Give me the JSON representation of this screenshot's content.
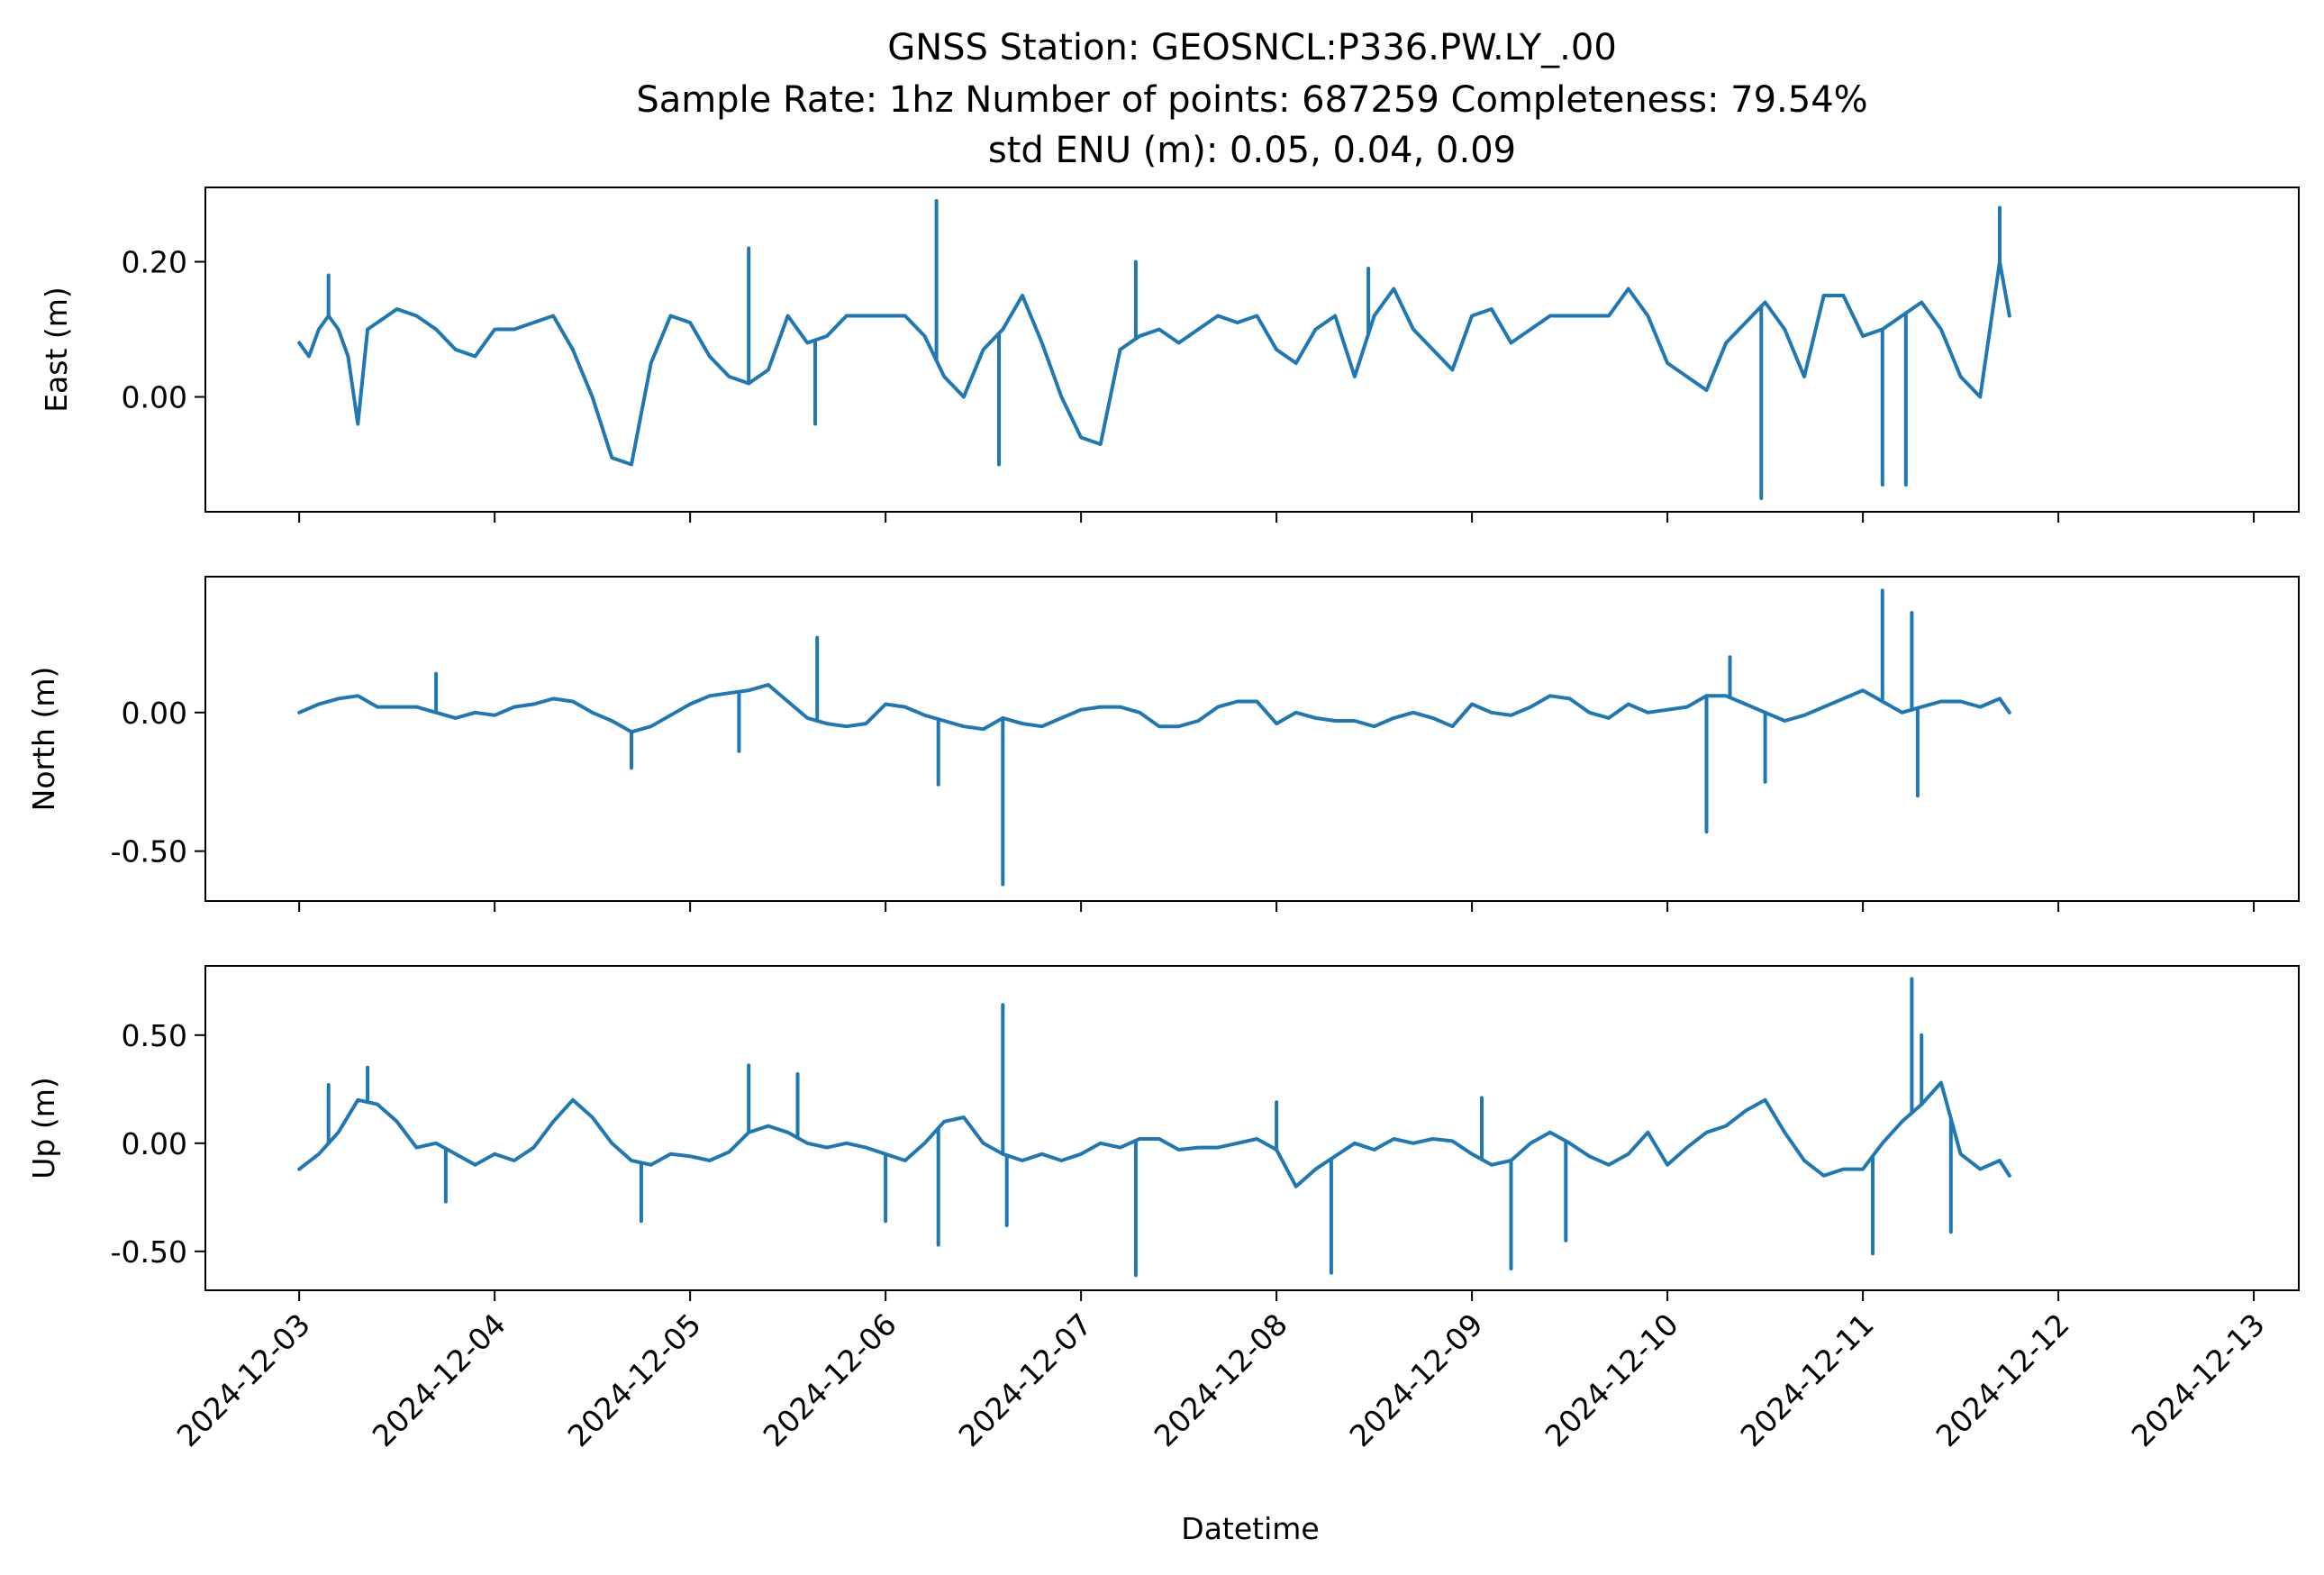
{
  "chart_data": {
    "type": "line",
    "title_lines": [
      "GNSS Station: GEOSNCL:P336.PW.LY_.00",
      "Sample Rate: 1hz   Number of points: 687259    Completeness:  79.54%",
      "std ENU (m):  0.05, 0.04, 0.09"
    ],
    "xlabel": "Datetime",
    "x_ticks": [
      "2024-12-03",
      "2024-12-04",
      "2024-12-05",
      "2024-12-06",
      "2024-12-07",
      "2024-12-08",
      "2024-12-09",
      "2024-12-10",
      "2024-12-11",
      "2024-12-12",
      "2024-12-13"
    ],
    "xlim_days": [
      -0.48,
      10.23
    ],
    "x_start_date": "2024-12-03",
    "color": "#1f77b4",
    "panels": [
      {
        "name": "east",
        "ylabel": "East (m)",
        "ylim": [
          -0.17,
          0.31
        ],
        "yticks": [
          0.0,
          0.2
        ],
        "ytick_labels": [
          "0.00",
          "0.20"
        ],
        "x": [
          0.0,
          0.05,
          0.1,
          0.15,
          0.2,
          0.25,
          0.3,
          0.35,
          0.4,
          0.5,
          0.6,
          0.7,
          0.8,
          0.9,
          1.0,
          1.1,
          1.2,
          1.3,
          1.4,
          1.5,
          1.6,
          1.7,
          1.8,
          1.9,
          2.0,
          2.1,
          2.2,
          2.3,
          2.4,
          2.5,
          2.6,
          2.7,
          2.8,
          2.9,
          3.0,
          3.1,
          3.2,
          3.3,
          3.4,
          3.5,
          3.6,
          3.7,
          3.8,
          3.9,
          4.0,
          4.1,
          4.2,
          4.3,
          4.4,
          4.5,
          4.6,
          4.7,
          4.8,
          4.9,
          5.0,
          5.1,
          5.2,
          5.3,
          5.4,
          5.5,
          5.6,
          5.7,
          5.8,
          5.9,
          6.0,
          6.1,
          6.2,
          6.3,
          6.4,
          6.5,
          6.6,
          6.7,
          6.8,
          6.9,
          7.0,
          7.1,
          7.2,
          7.3,
          7.4,
          7.5,
          7.6,
          7.7,
          7.8,
          7.9,
          8.0,
          8.1,
          8.2,
          8.3,
          8.4,
          8.5,
          8.6,
          8.7,
          8.75
        ],
        "y": [
          0.08,
          0.06,
          0.1,
          0.12,
          0.1,
          0.06,
          -0.04,
          0.1,
          0.11,
          0.13,
          0.12,
          0.1,
          0.07,
          0.06,
          0.1,
          0.1,
          0.11,
          0.12,
          0.07,
          0.0,
          -0.09,
          -0.1,
          0.05,
          0.12,
          0.11,
          0.06,
          0.03,
          0.02,
          0.04,
          0.12,
          0.08,
          0.09,
          0.12,
          0.12,
          0.12,
          0.12,
          0.09,
          0.03,
          0.0,
          0.07,
          0.1,
          0.15,
          0.08,
          0.0,
          -0.06,
          -0.07,
          0.07,
          0.09,
          0.1,
          0.08,
          0.1,
          0.12,
          0.11,
          0.12,
          0.07,
          0.05,
          0.1,
          0.12,
          0.03,
          0.12,
          0.16,
          0.1,
          0.07,
          0.04,
          0.12,
          0.13,
          0.08,
          0.1,
          0.12,
          0.12,
          0.12,
          0.12,
          0.16,
          0.12,
          0.05,
          0.03,
          0.01,
          0.08,
          0.11,
          0.14,
          0.1,
          0.03,
          0.15,
          0.15,
          0.09,
          0.1,
          0.12,
          0.14,
          0.1,
          0.03,
          0.0,
          0.2,
          0.12
        ],
        "spikes": [
          {
            "x": 0.15,
            "y": 0.18
          },
          {
            "x": 2.3,
            "y": 0.22
          },
          {
            "x": 2.64,
            "y": -0.04
          },
          {
            "x": 3.26,
            "y": 0.29
          },
          {
            "x": 3.58,
            "y": -0.1
          },
          {
            "x": 4.28,
            "y": 0.2
          },
          {
            "x": 5.47,
            "y": 0.19
          },
          {
            "x": 7.48,
            "y": -0.15
          },
          {
            "x": 8.1,
            "y": -0.13
          },
          {
            "x": 8.22,
            "y": -0.13
          },
          {
            "x": 8.7,
            "y": 0.28
          }
        ]
      },
      {
        "name": "north",
        "ylabel": "North (m)",
        "ylim": [
          -0.68,
          0.49
        ],
        "yticks": [
          -0.5,
          0.0
        ],
        "ytick_labels": [
          "-0.50",
          "0.00"
        ],
        "x": [
          0.0,
          0.1,
          0.2,
          0.3,
          0.4,
          0.5,
          0.6,
          0.7,
          0.8,
          0.9,
          1.0,
          1.1,
          1.2,
          1.3,
          1.4,
          1.5,
          1.6,
          1.7,
          1.8,
          1.9,
          2.0,
          2.1,
          2.2,
          2.3,
          2.4,
          2.5,
          2.6,
          2.7,
          2.8,
          2.9,
          3.0,
          3.1,
          3.2,
          3.3,
          3.4,
          3.5,
          3.6,
          3.7,
          3.8,
          3.9,
          4.0,
          4.1,
          4.2,
          4.3,
          4.4,
          4.5,
          4.6,
          4.7,
          4.8,
          4.9,
          5.0,
          5.1,
          5.2,
          5.3,
          5.4,
          5.5,
          5.6,
          5.7,
          5.8,
          5.9,
          6.0,
          6.1,
          6.2,
          6.3,
          6.4,
          6.5,
          6.6,
          6.7,
          6.8,
          6.9,
          7.0,
          7.1,
          7.2,
          7.3,
          7.4,
          7.5,
          7.6,
          7.7,
          7.8,
          7.9,
          8.0,
          8.1,
          8.2,
          8.3,
          8.4,
          8.5,
          8.6,
          8.7,
          8.75
        ],
        "y": [
          0.0,
          0.03,
          0.05,
          0.06,
          0.02,
          0.02,
          0.02,
          0.0,
          -0.02,
          0.0,
          -0.01,
          0.02,
          0.03,
          0.05,
          0.04,
          0.0,
          -0.03,
          -0.07,
          -0.05,
          -0.01,
          0.03,
          0.06,
          0.07,
          0.08,
          0.1,
          0.04,
          -0.02,
          -0.04,
          -0.05,
          -0.04,
          0.03,
          0.02,
          -0.01,
          -0.03,
          -0.05,
          -0.06,
          -0.02,
          -0.04,
          -0.05,
          -0.02,
          0.01,
          0.02,
          0.02,
          0.0,
          -0.05,
          -0.05,
          -0.03,
          0.02,
          0.04,
          0.04,
          -0.04,
          0.0,
          -0.02,
          -0.03,
          -0.03,
          -0.05,
          -0.02,
          0.0,
          -0.02,
          -0.05,
          0.03,
          0.0,
          -0.01,
          0.02,
          0.06,
          0.05,
          0.0,
          -0.02,
          0.03,
          0.0,
          0.01,
          0.02,
          0.06,
          0.06,
          0.03,
          0.0,
          -0.03,
          -0.01,
          0.02,
          0.05,
          0.08,
          0.04,
          0.0,
          0.02,
          0.04,
          0.04,
          0.02,
          0.05,
          0.0
        ],
        "spikes": [
          {
            "x": 0.7,
            "y": 0.14
          },
          {
            "x": 1.7,
            "y": -0.2
          },
          {
            "x": 2.25,
            "y": -0.14
          },
          {
            "x": 2.65,
            "y": 0.27
          },
          {
            "x": 3.27,
            "y": -0.26
          },
          {
            "x": 3.6,
            "y": -0.62
          },
          {
            "x": 7.2,
            "y": -0.43
          },
          {
            "x": 7.32,
            "y": 0.2
          },
          {
            "x": 7.5,
            "y": -0.25
          },
          {
            "x": 8.1,
            "y": 0.44
          },
          {
            "x": 8.25,
            "y": 0.36
          },
          {
            "x": 8.28,
            "y": -0.3
          }
        ]
      },
      {
        "name": "up",
        "ylabel": "Up (m)",
        "ylim": [
          -0.68,
          0.82
        ],
        "yticks": [
          -0.5,
          0.0,
          0.5
        ],
        "ytick_labels": [
          "-0.50",
          "0.00",
          "0.50"
        ],
        "x": [
          0.0,
          0.1,
          0.2,
          0.3,
          0.4,
          0.5,
          0.6,
          0.7,
          0.8,
          0.9,
          1.0,
          1.1,
          1.2,
          1.3,
          1.4,
          1.5,
          1.6,
          1.7,
          1.8,
          1.9,
          2.0,
          2.1,
          2.2,
          2.3,
          2.4,
          2.5,
          2.6,
          2.7,
          2.8,
          2.9,
          3.0,
          3.1,
          3.2,
          3.3,
          3.4,
          3.5,
          3.6,
          3.7,
          3.8,
          3.9,
          4.0,
          4.1,
          4.2,
          4.3,
          4.4,
          4.5,
          4.6,
          4.7,
          4.8,
          4.9,
          5.0,
          5.1,
          5.2,
          5.3,
          5.4,
          5.5,
          5.6,
          5.7,
          5.8,
          5.9,
          6.0,
          6.1,
          6.2,
          6.3,
          6.4,
          6.5,
          6.6,
          6.7,
          6.8,
          6.9,
          7.0,
          7.1,
          7.2,
          7.3,
          7.4,
          7.5,
          7.6,
          7.7,
          7.8,
          7.9,
          8.0,
          8.1,
          8.2,
          8.3,
          8.4,
          8.5,
          8.6,
          8.7,
          8.75
        ],
        "y": [
          -0.12,
          -0.05,
          0.05,
          0.2,
          0.18,
          0.1,
          -0.02,
          0.0,
          -0.05,
          -0.1,
          -0.05,
          -0.08,
          -0.02,
          0.1,
          0.2,
          0.12,
          0.0,
          -0.08,
          -0.1,
          -0.05,
          -0.06,
          -0.08,
          -0.04,
          0.05,
          0.08,
          0.05,
          0.0,
          -0.02,
          0.0,
          -0.02,
          -0.05,
          -0.08,
          0.0,
          0.1,
          0.12,
          0.0,
          -0.05,
          -0.08,
          -0.05,
          -0.08,
          -0.05,
          0.0,
          -0.02,
          0.02,
          0.02,
          -0.03,
          -0.02,
          -0.02,
          0.0,
          0.02,
          -0.03,
          -0.2,
          -0.12,
          -0.06,
          0.0,
          -0.03,
          0.02,
          0.0,
          0.02,
          0.01,
          -0.05,
          -0.1,
          -0.08,
          0.0,
          0.05,
          0.0,
          -0.06,
          -0.1,
          -0.05,
          0.05,
          -0.1,
          -0.02,
          0.05,
          0.08,
          0.15,
          0.2,
          0.05,
          -0.08,
          -0.15,
          -0.12,
          -0.12,
          0.0,
          0.1,
          0.18,
          0.28,
          -0.05,
          -0.12,
          -0.08,
          -0.15
        ],
        "spikes": [
          {
            "x": 0.15,
            "y": 0.27
          },
          {
            "x": 0.35,
            "y": 0.35
          },
          {
            "x": 0.75,
            "y": -0.27
          },
          {
            "x": 1.75,
            "y": -0.36
          },
          {
            "x": 2.3,
            "y": 0.36
          },
          {
            "x": 2.55,
            "y": 0.32
          },
          {
            "x": 3.0,
            "y": -0.36
          },
          {
            "x": 3.27,
            "y": -0.47
          },
          {
            "x": 3.6,
            "y": 0.64
          },
          {
            "x": 3.62,
            "y": -0.38
          },
          {
            "x": 4.28,
            "y": -0.61
          },
          {
            "x": 5.28,
            "y": -0.6
          },
          {
            "x": 5.0,
            "y": 0.19
          },
          {
            "x": 6.05,
            "y": 0.21
          },
          {
            "x": 6.2,
            "y": -0.58
          },
          {
            "x": 6.48,
            "y": -0.45
          },
          {
            "x": 8.05,
            "y": -0.51
          },
          {
            "x": 8.25,
            "y": 0.76
          },
          {
            "x": 8.3,
            "y": 0.5
          },
          {
            "x": 8.45,
            "y": -0.41
          }
        ]
      }
    ]
  }
}
